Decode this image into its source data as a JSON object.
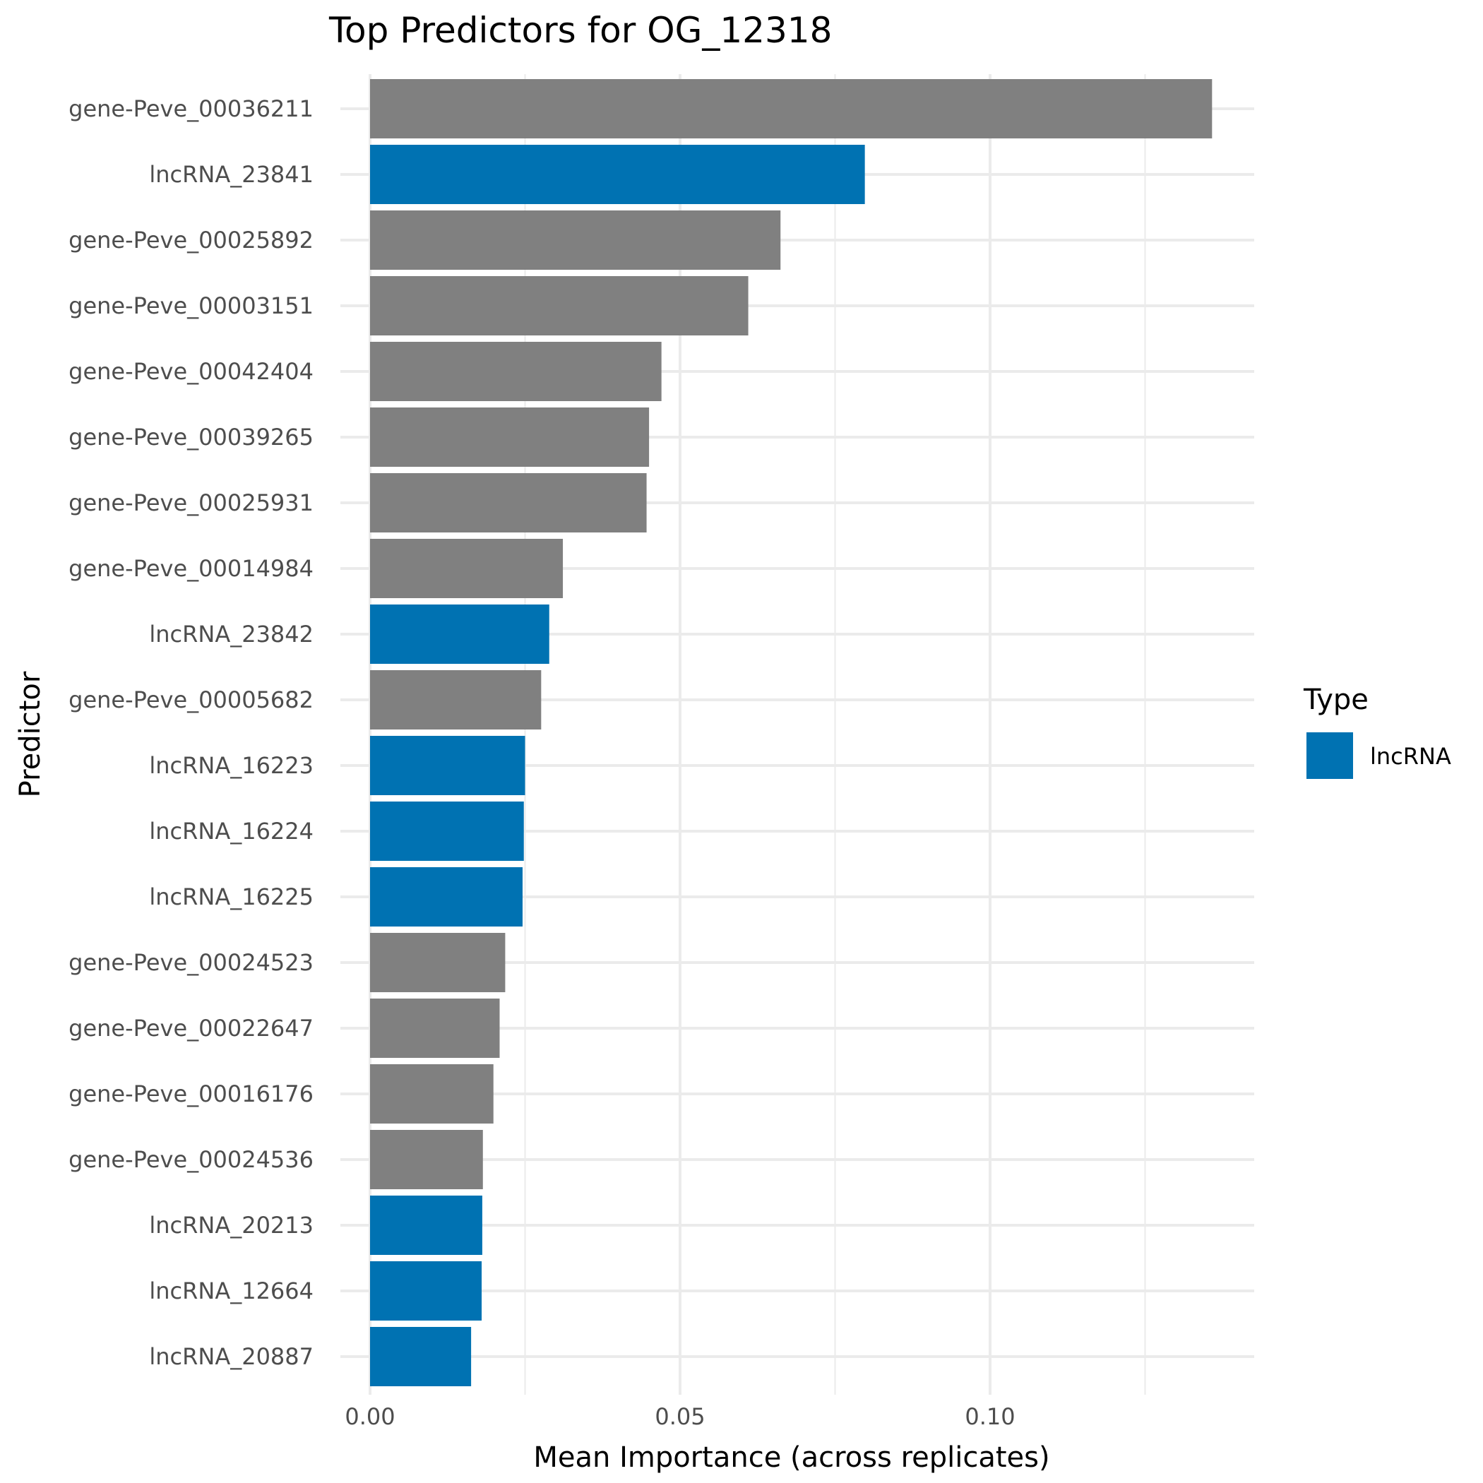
{
  "chart_data": {
    "type": "bar",
    "orientation": "horizontal",
    "title": "Top Predictors for OG_12318",
    "xlabel": "Mean Importance (across replicates)",
    "ylabel": "Predictor",
    "xlim": [
      0,
      0.142
    ],
    "x_ticks": [
      {
        "value": 0.0,
        "label": "0.00"
      },
      {
        "value": 0.05,
        "label": "0.05"
      },
      {
        "value": 0.1,
        "label": "0.10"
      }
    ],
    "grid": true,
    "legend": {
      "title": "Type",
      "placement": "right",
      "entries": [
        {
          "label": "lncRNA",
          "color": "#0072b2"
        }
      ]
    },
    "colors": {
      "lncRNA": "#0072b2",
      "gene": "#808080"
    },
    "categories": [
      "gene-Peve_00036211",
      "lncRNA_23841",
      "gene-Peve_00025892",
      "gene-Peve_00003151",
      "gene-Peve_00042404",
      "gene-Peve_00039265",
      "gene-Peve_00025931",
      "gene-Peve_00014984",
      "lncRNA_23842",
      "gene-Peve_00005682",
      "lncRNA_16223",
      "lncRNA_16224",
      "lncRNA_16225",
      "gene-Peve_00024523",
      "gene-Peve_00022647",
      "gene-Peve_00016176",
      "gene-Peve_00024536",
      "lncRNA_20213",
      "lncRNA_12664",
      "lncRNA_20887"
    ],
    "values": [
      0.1358,
      0.0798,
      0.0662,
      0.061,
      0.047,
      0.045,
      0.0446,
      0.0311,
      0.0289,
      0.0276,
      0.025,
      0.0248,
      0.0246,
      0.0218,
      0.0209,
      0.0199,
      0.0182,
      0.0181,
      0.018,
      0.0163
    ],
    "types": [
      "gene",
      "lncRNA",
      "gene",
      "gene",
      "gene",
      "gene",
      "gene",
      "gene",
      "lncRNA",
      "gene",
      "lncRNA",
      "lncRNA",
      "lncRNA",
      "gene",
      "gene",
      "gene",
      "gene",
      "lncRNA",
      "lncRNA",
      "lncRNA"
    ]
  }
}
